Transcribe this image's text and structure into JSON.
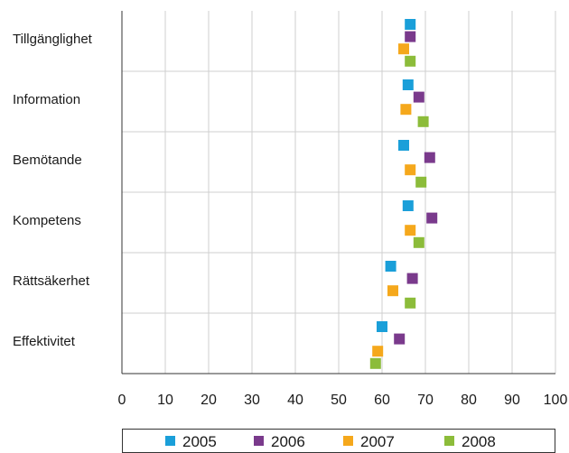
{
  "chart_data": {
    "type": "scatter",
    "orientation": "horizontal",
    "categories": [
      "Tillgänglighet",
      "Information",
      "Bemötande",
      "Kompetens",
      "Rättsäkerhet",
      "Effektivitet"
    ],
    "series": [
      {
        "name": "2005",
        "color": "#1a9fd9",
        "values": [
          66.5,
          66,
          65,
          66,
          62,
          60
        ]
      },
      {
        "name": "2006",
        "color": "#7a3a8c",
        "values": [
          66.5,
          68.5,
          71,
          71.5,
          67,
          64
        ]
      },
      {
        "name": "2007",
        "color": "#f5a81c",
        "values": [
          65,
          65.5,
          66.5,
          66.5,
          62.5,
          59
        ]
      },
      {
        "name": "2008",
        "color": "#8cbc3a",
        "values": [
          66.5,
          69.5,
          69,
          68.5,
          66.5,
          58.5
        ]
      }
    ],
    "xlim": [
      0,
      100
    ],
    "xticks": [
      "0",
      "10",
      "20",
      "30",
      "40",
      "50",
      "60",
      "70",
      "80",
      "90",
      "100"
    ],
    "grid": true,
    "legend_position": "bottom"
  }
}
